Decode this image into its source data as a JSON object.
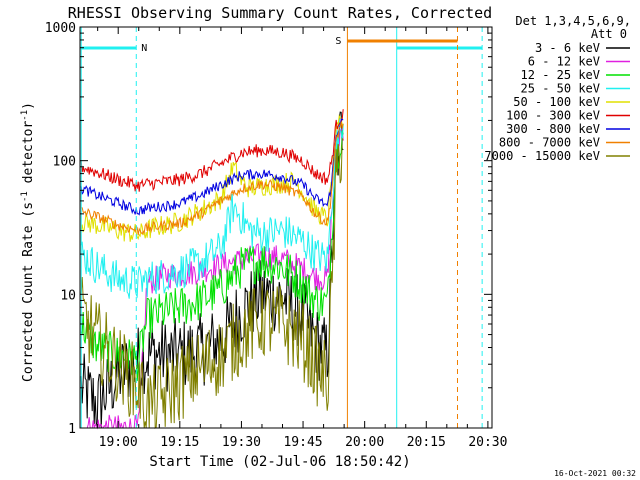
{
  "chart_data": {
    "type": "line",
    "title": "RHESSI Observing Summary Count Rates, Corrected",
    "xlabel": "Start Time (02-Jul-06 18:50:42)",
    "ylabel_parts": {
      "pre": "Corrected Count Rate (s",
      "sup1": "-1",
      "mid": " detector",
      "sup2": "-1",
      "post": ")"
    },
    "x_domain_min": [
      1130.7,
      1231.0
    ],
    "y_scale": "log",
    "ylim": [
      1,
      1000
    ],
    "x_ticks": [
      {
        "min": 1140,
        "label": "19:00"
      },
      {
        "min": 1155,
        "label": "19:15"
      },
      {
        "min": 1170,
        "label": "19:30"
      },
      {
        "min": 1185,
        "label": "19:45"
      },
      {
        "min": 1200,
        "label": "20:00"
      },
      {
        "min": 1215,
        "label": "20:15"
      },
      {
        "min": 1230,
        "label": "20:30"
      }
    ],
    "y_ticks": [
      {
        "value": 1,
        "label": "1"
      },
      {
        "value": 10,
        "label": "10"
      },
      {
        "value": 100,
        "label": "100"
      },
      {
        "value": 1000,
        "label": "1000"
      }
    ],
    "legend": {
      "placement": "top-right",
      "header": [
        "Det 1,3,4,5,6,9,",
        "Att 0"
      ],
      "items": [
        {
          "name": "3 - 6 keV",
          "color": "#000000"
        },
        {
          "name": "6 - 12 keV",
          "color": "#e020e0"
        },
        {
          "name": "12 - 25 keV",
          "color": "#00e000"
        },
        {
          "name": "25 - 50 keV",
          "color": "#20f0f0"
        },
        {
          "name": "50 - 100 keV",
          "color": "#e0e000"
        },
        {
          "name": "100 - 300 keV",
          "color": "#e00000"
        },
        {
          "name": "300 - 800 keV",
          "color": "#0000e0"
        },
        {
          "name": "800 - 7000 keV",
          "color": "#f08000"
        },
        {
          "name": "7000 - 15000 keV",
          "color": "#808000"
        }
      ]
    },
    "series": [
      {
        "name": "3 - 6 keV",
        "color": "#000000",
        "x": [
          1131,
          1135,
          1140,
          1145,
          1147,
          1149,
          1152,
          1155,
          1160,
          1165,
          1170,
          1175,
          1180,
          1185,
          1188,
          1191,
          1192,
          1193,
          1194,
          1195
        ],
        "y": [
          2,
          1.5,
          2.5,
          3.2,
          3.5,
          3.6,
          3.5,
          3.5,
          3.8,
          4.5,
          7.5,
          10,
          9.5,
          7,
          4.5,
          3.5,
          20,
          80,
          150,
          200
        ],
        "noise": 0.28
      },
      {
        "name": "6 - 12 keV",
        "color": "#e020e0",
        "x": [
          1131,
          1135,
          1140,
          1145,
          1147,
          1149,
          1152,
          1155,
          1160,
          1165,
          1170,
          1175,
          1180,
          1185,
          1188,
          1191,
          1192,
          1193,
          1194,
          1195
        ],
        "y": [
          1,
          1,
          1,
          1,
          12,
          13,
          14,
          14,
          15,
          16.5,
          18,
          19.5,
          18.5,
          15.5,
          13.5,
          13,
          40,
          110,
          160,
          180
        ],
        "noise": 0.1
      },
      {
        "name": "12 - 25 keV",
        "color": "#00e000",
        "x": [
          1131,
          1135,
          1140,
          1145,
          1147,
          1149,
          1152,
          1155,
          1160,
          1165,
          1170,
          1175,
          1180,
          1185,
          1188,
          1191,
          1192,
          1193,
          1194,
          1195
        ],
        "y": [
          6,
          4,
          3.5,
          3.2,
          6.5,
          7,
          7.5,
          8,
          9,
          11,
          16,
          18,
          16,
          12,
          9,
          8.5,
          30,
          100,
          150,
          170
        ],
        "noise": 0.16
      },
      {
        "name": "25 - 50 keV",
        "color": "#20f0f0",
        "x": [
          1131,
          1135,
          1140,
          1145,
          1147,
          1149,
          1152,
          1155,
          1160,
          1165,
          1168,
          1170,
          1172,
          1175,
          1180,
          1185,
          1188,
          1191,
          1192,
          1193,
          1194,
          1195
        ],
        "y": [
          20,
          16,
          13,
          12,
          13,
          13.5,
          14,
          15,
          17,
          22,
          45,
          38,
          30,
          28,
          30,
          25,
          20,
          18,
          50,
          120,
          170,
          190
        ],
        "noise": 0.14
      },
      {
        "name": "50 - 100 keV",
        "color": "#e0e000",
        "x": [
          1131,
          1135,
          1140,
          1145,
          1147,
          1149,
          1152,
          1155,
          1160,
          1165,
          1168,
          1170,
          1172,
          1175,
          1180,
          1183,
          1185,
          1188,
          1191,
          1192,
          1193,
          1194,
          1195
        ],
        "y": [
          35,
          33,
          30,
          28,
          30,
          32,
          33,
          35,
          42,
          52,
          90,
          70,
          62,
          65,
          68,
          70,
          58,
          42,
          36,
          70,
          150,
          190,
          200
        ],
        "noise": 0.08
      },
      {
        "name": "100 - 300 keV",
        "color": "#e00000",
        "x": [
          1131,
          1135,
          1140,
          1145,
          1147,
          1149,
          1152,
          1155,
          1160,
          1165,
          1170,
          1175,
          1180,
          1185,
          1188,
          1191,
          1192,
          1193,
          1194,
          1195
        ],
        "y": [
          90,
          82,
          72,
          65,
          67,
          68,
          70,
          72,
          80,
          95,
          115,
          120,
          115,
          100,
          80,
          72,
          100,
          180,
          210,
          220
        ],
        "noise": 0.05
      },
      {
        "name": "300 - 800 keV",
        "color": "#0000e0",
        "x": [
          1131,
          1135,
          1140,
          1145,
          1147,
          1149,
          1152,
          1155,
          1160,
          1165,
          1170,
          1175,
          1180,
          1185,
          1188,
          1191,
          1192,
          1193,
          1194,
          1195
        ],
        "y": [
          62,
          55,
          48,
          42,
          44,
          45,
          46,
          48,
          55,
          66,
          78,
          80,
          76,
          66,
          52,
          46,
          70,
          150,
          190,
          200
        ],
        "noise": 0.04
      },
      {
        "name": "800 - 7000 keV",
        "color": "#f08000",
        "x": [
          1131,
          1135,
          1140,
          1145,
          1147,
          1149,
          1152,
          1155,
          1160,
          1165,
          1170,
          1175,
          1180,
          1185,
          1188,
          1191,
          1192,
          1193,
          1194,
          1195
        ],
        "y": [
          42,
          38,
          33,
          30,
          31,
          32,
          33,
          34,
          40,
          50,
          62,
          67,
          63,
          54,
          40,
          34,
          60,
          140,
          180,
          190
        ],
        "noise": 0.04
      },
      {
        "name": "7000 - 15000 keV",
        "color": "#808000",
        "x": [
          1131,
          1135,
          1140,
          1145,
          1147,
          1149,
          1152,
          1155,
          1160,
          1165,
          1170,
          1175,
          1180,
          1185,
          1188,
          1191,
          1192,
          1193,
          1194,
          1195
        ],
        "y": [
          7,
          4.5,
          3,
          2,
          1.5,
          1.5,
          1.8,
          2.2,
          2.8,
          3.5,
          5,
          6.5,
          6,
          4.5,
          3,
          2.2,
          10,
          60,
          120,
          150
        ],
        "noise": 0.3
      }
    ],
    "annotations": {
      "night_label": "N",
      "saa_label": "S",
      "night_bars": [
        [
          1130.9,
          1144.4
        ],
        [
          1207.8,
          1228.6
        ]
      ],
      "night_solid_lines": [
        1131.0,
        1207.8
      ],
      "night_dashed_lines": [
        1144.4,
        1228.6
      ],
      "saa_bar": [
        1195.8,
        1222.6
      ],
      "saa_solid_line": 1195.8,
      "saa_dashed_line": 1222.6,
      "night_color": "#20f0f0",
      "saa_color": "#f08000"
    },
    "timestamp": "16-Oct-2021 00:32"
  }
}
